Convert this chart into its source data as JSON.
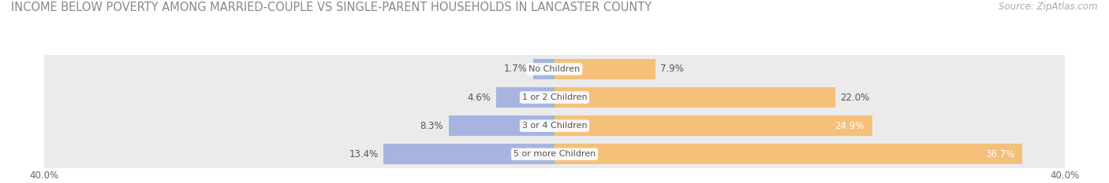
{
  "title": "INCOME BELOW POVERTY AMONG MARRIED-COUPLE VS SINGLE-PARENT HOUSEHOLDS IN LANCASTER COUNTY",
  "source": "Source: ZipAtlas.com",
  "categories": [
    "5 or more Children",
    "3 or 4 Children",
    "1 or 2 Children",
    "No Children"
  ],
  "married_values": [
    13.4,
    8.3,
    4.6,
    1.7
  ],
  "single_values": [
    36.7,
    24.9,
    22.0,
    7.9
  ],
  "married_color": "#A8B4E0",
  "single_color": "#F5C07A",
  "row_bg_color": "#EBEBEB",
  "row_bg_color2": "#F5F5F5",
  "axis_limit": 40.0,
  "bar_height": 0.72,
  "title_fontsize": 10.5,
  "source_fontsize": 8.5,
  "label_fontsize_dark": 8.5,
  "label_fontsize_light": 8.5,
  "tick_fontsize": 8.5,
  "legend_fontsize": 8.5,
  "category_fontsize": 8.0,
  "figsize": [
    14.06,
    2.33
  ],
  "dpi": 100,
  "single_label_white": [
    true,
    true,
    false,
    false
  ],
  "married_label_white": [
    false,
    false,
    false,
    false
  ]
}
